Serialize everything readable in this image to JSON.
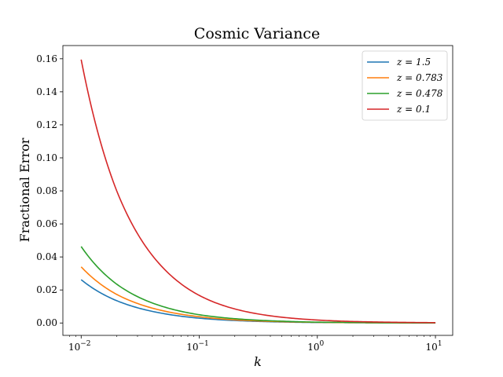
{
  "chart_data": {
    "type": "line",
    "title": "Cosmic Variance",
    "xlabel": "k",
    "ylabel": "Fractional Error",
    "xscale": "log",
    "xlim": [
      0.007,
      14
    ],
    "ylim": [
      -0.0075,
      0.168
    ],
    "xticks": [
      {
        "base": "10",
        "exp": "−2",
        "value": 0.01
      },
      {
        "base": "10",
        "exp": "−1",
        "value": 0.1
      },
      {
        "base": "10",
        "exp": "0",
        "value": 1
      },
      {
        "base": "10",
        "exp": "1",
        "value": 10
      }
    ],
    "yticks": [
      "0.00",
      "0.02",
      "0.04",
      "0.06",
      "0.08",
      "0.10",
      "0.12",
      "0.14",
      "0.16"
    ],
    "grid": false,
    "legend_position": "top-right",
    "series": [
      {
        "name": "z = 1.5",
        "color": "#1f77b4",
        "x": [
          0.01,
          0.02,
          0.05,
          0.1,
          0.2,
          0.5,
          1,
          2,
          5,
          10
        ],
        "values": [
          0.0262,
          0.0135,
          0.0057,
          0.0029,
          0.0015,
          0.0006,
          0.0003,
          0.0002,
          0.0001,
          0.0
        ]
      },
      {
        "name": "z = 0.783",
        "color": "#ff7f0e",
        "x": [
          0.01,
          0.02,
          0.05,
          0.1,
          0.2,
          0.5,
          1,
          2,
          5,
          10
        ],
        "values": [
          0.034,
          0.0173,
          0.0073,
          0.0038,
          0.0019,
          0.0008,
          0.0004,
          0.0002,
          0.0001,
          0.0
        ]
      },
      {
        "name": "z = 0.478",
        "color": "#2ca02c",
        "x": [
          0.01,
          0.02,
          0.05,
          0.1,
          0.2,
          0.5,
          1,
          2,
          5,
          10
        ],
        "values": [
          0.0463,
          0.0235,
          0.0098,
          0.005,
          0.0026,
          0.0011,
          0.0005,
          0.0003,
          0.0001,
          0.0
        ]
      },
      {
        "name": "z = 0.1",
        "color": "#d62728",
        "x": [
          0.01,
          0.02,
          0.05,
          0.1,
          0.2,
          0.5,
          1,
          2,
          5,
          10
        ],
        "values": [
          0.1595,
          0.08,
          0.033,
          0.0167,
          0.0085,
          0.0035,
          0.0018,
          0.0009,
          0.0004,
          0.0002
        ]
      }
    ]
  }
}
